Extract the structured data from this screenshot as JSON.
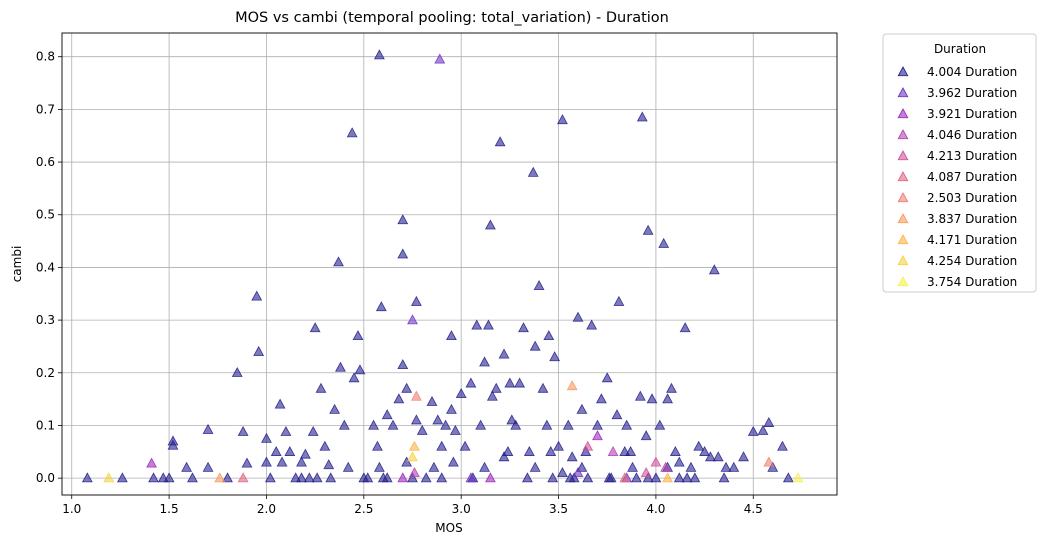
{
  "chart_data": {
    "type": "scatter",
    "title": "MOS vs cambi (temporal pooling: total_variation) - Duration",
    "xlabel": "MOS",
    "ylabel": "cambi",
    "xlim": [
      0.95,
      4.93
    ],
    "ylim": [
      -0.032,
      0.845
    ],
    "xticks": [
      "1.0",
      "1.5",
      "2.0",
      "2.5",
      "3.0",
      "3.5",
      "4.0",
      "4.5"
    ],
    "yticks": [
      "0.0",
      "0.1",
      "0.2",
      "0.3",
      "0.4",
      "0.5",
      "0.6",
      "0.7",
      "0.8"
    ],
    "grid": true,
    "marker": "triangle",
    "legend": {
      "title": "Duration",
      "placement": "outside-top-right",
      "entries": [
        "4.004 Duration",
        "3.962 Duration",
        "3.921 Duration",
        "4.046 Duration",
        "4.213 Duration",
        "4.087 Duration",
        "2.503 Duration",
        "3.837 Duration",
        "4.171 Duration",
        "4.254 Duration",
        "3.754 Duration"
      ]
    },
    "series": [
      {
        "name": "4.004 Duration",
        "color": "#1f1a8a",
        "points": [
          [
            1.08,
            0.0
          ],
          [
            1.26,
            0.0
          ],
          [
            1.42,
            0.0
          ],
          [
            1.47,
            0.0
          ],
          [
            1.5,
            0.0
          ],
          [
            1.52,
            0.07
          ],
          [
            1.52,
            0.062
          ],
          [
            1.59,
            0.02
          ],
          [
            1.62,
            0.0
          ],
          [
            1.7,
            0.092
          ],
          [
            1.7,
            0.02
          ],
          [
            1.8,
            0.0
          ],
          [
            1.85,
            0.2
          ],
          [
            1.88,
            0.088
          ],
          [
            1.9,
            0.028
          ],
          [
            1.95,
            0.345
          ],
          [
            1.96,
            0.24
          ],
          [
            2.0,
            0.075
          ],
          [
            2.0,
            0.03
          ],
          [
            2.02,
            0.0
          ],
          [
            2.05,
            0.05
          ],
          [
            2.07,
            0.14
          ],
          [
            2.1,
            0.088
          ],
          [
            2.12,
            0.05
          ],
          [
            2.15,
            0.0
          ],
          [
            2.18,
            0.03
          ],
          [
            2.2,
            0.045
          ],
          [
            2.22,
            0.0
          ],
          [
            2.24,
            0.088
          ],
          [
            2.25,
            0.285
          ],
          [
            2.28,
            0.17
          ],
          [
            2.3,
            0.06
          ],
          [
            2.32,
            0.025
          ],
          [
            2.35,
            0.13
          ],
          [
            2.37,
            0.41
          ],
          [
            2.38,
            0.21
          ],
          [
            2.4,
            0.1
          ],
          [
            2.42,
            0.02
          ],
          [
            2.44,
            0.655
          ],
          [
            2.45,
            0.19
          ],
          [
            2.47,
            0.27
          ],
          [
            2.48,
            0.205
          ],
          [
            2.5,
            0.0
          ],
          [
            2.52,
            0.0
          ],
          [
            2.55,
            0.1
          ],
          [
            2.57,
            0.06
          ],
          [
            2.58,
            0.803
          ],
          [
            2.59,
            0.325
          ],
          [
            2.6,
            0.0
          ],
          [
            2.62,
            0.12
          ],
          [
            2.65,
            0.1
          ],
          [
            2.68,
            0.15
          ],
          [
            2.7,
            0.49
          ],
          [
            2.7,
            0.425
          ],
          [
            2.7,
            0.215
          ],
          [
            2.72,
            0.17
          ],
          [
            2.75,
            0.0
          ],
          [
            2.77,
            0.335
          ],
          [
            2.77,
            0.11
          ],
          [
            2.8,
            0.09
          ],
          [
            2.82,
            0.0
          ],
          [
            2.85,
            0.145
          ],
          [
            2.88,
            0.11
          ],
          [
            2.9,
            0.06
          ],
          [
            2.92,
            0.1
          ],
          [
            2.95,
            0.27
          ],
          [
            2.95,
            0.13
          ],
          [
            2.97,
            0.09
          ],
          [
            3.0,
            0.16
          ],
          [
            3.02,
            0.06
          ],
          [
            3.05,
            0.18
          ],
          [
            3.08,
            0.29
          ],
          [
            3.1,
            0.1
          ],
          [
            3.12,
            0.22
          ],
          [
            3.14,
            0.29
          ],
          [
            3.15,
            0.48
          ],
          [
            3.16,
            0.155
          ],
          [
            3.18,
            0.17
          ],
          [
            3.2,
            0.638
          ],
          [
            3.22,
            0.235
          ],
          [
            3.24,
            0.05
          ],
          [
            3.25,
            0.18
          ],
          [
            3.26,
            0.11
          ],
          [
            3.28,
            0.1
          ],
          [
            3.3,
            0.18
          ],
          [
            3.32,
            0.285
          ],
          [
            3.35,
            0.05
          ],
          [
            3.37,
            0.58
          ],
          [
            3.38,
            0.25
          ],
          [
            3.4,
            0.365
          ],
          [
            3.42,
            0.17
          ],
          [
            3.44,
            0.1
          ],
          [
            3.45,
            0.27
          ],
          [
            3.47,
            0.0
          ],
          [
            3.48,
            0.23
          ],
          [
            3.5,
            0.06
          ],
          [
            3.52,
            0.68
          ],
          [
            3.55,
            0.1
          ],
          [
            3.57,
            0.04
          ],
          [
            3.58,
            0.0
          ],
          [
            3.6,
            0.305
          ],
          [
            3.62,
            0.13
          ],
          [
            3.64,
            0.05
          ],
          [
            3.65,
            0.0
          ],
          [
            3.67,
            0.29
          ],
          [
            3.7,
            0.1
          ],
          [
            3.72,
            0.15
          ],
          [
            3.75,
            0.19
          ],
          [
            3.77,
            0.0
          ],
          [
            3.8,
            0.12
          ],
          [
            3.81,
            0.335
          ],
          [
            3.85,
            0.1
          ],
          [
            3.87,
            0.05
          ],
          [
            3.9,
            0.0
          ],
          [
            3.92,
            0.155
          ],
          [
            3.93,
            0.685
          ],
          [
            3.95,
            0.08
          ],
          [
            3.96,
            0.47
          ],
          [
            3.98,
            0.15
          ],
          [
            4.0,
            0.0
          ],
          [
            4.02,
            0.1
          ],
          [
            4.04,
            0.445
          ],
          [
            4.06,
            0.15
          ],
          [
            4.08,
            0.17
          ],
          [
            4.1,
            0.05
          ],
          [
            4.12,
            0.03
          ],
          [
            4.15,
            0.285
          ],
          [
            4.18,
            0.02
          ],
          [
            4.2,
            0.0
          ],
          [
            4.22,
            0.06
          ],
          [
            4.25,
            0.05
          ],
          [
            4.28,
            0.04
          ],
          [
            4.3,
            0.395
          ],
          [
            4.32,
            0.04
          ],
          [
            4.35,
            0.0
          ],
          [
            4.4,
            0.02
          ],
          [
            4.45,
            0.04
          ],
          [
            4.5,
            0.088
          ],
          [
            4.55,
            0.09
          ],
          [
            4.58,
            0.105
          ],
          [
            4.6,
            0.02
          ],
          [
            4.65,
            0.06
          ],
          [
            4.68,
            0.0
          ],
          [
            2.08,
            0.03
          ],
          [
            2.33,
            0.0
          ],
          [
            2.62,
            0.0
          ],
          [
            2.9,
            0.0
          ],
          [
            3.06,
            0.0
          ],
          [
            3.34,
            0.0
          ],
          [
            3.56,
            0.0
          ],
          [
            3.76,
            0.0
          ],
          [
            3.96,
            0.0
          ],
          [
            4.16,
            0.0
          ],
          [
            2.26,
            0.0
          ],
          [
            2.58,
            0.02
          ],
          [
            2.86,
            0.02
          ],
          [
            3.12,
            0.02
          ],
          [
            3.38,
            0.02
          ],
          [
            3.62,
            0.02
          ],
          [
            3.88,
            0.02
          ],
          [
            4.12,
            0.0
          ],
          [
            4.36,
            0.02
          ],
          [
            2.18,
            0.0
          ],
          [
            2.72,
            0.03
          ],
          [
            3.22,
            0.04
          ],
          [
            3.52,
            0.01
          ],
          [
            3.84,
            0.05
          ],
          [
            4.06,
            0.02
          ],
          [
            2.96,
            0.03
          ],
          [
            3.46,
            0.05
          ]
        ]
      },
      {
        "name": "3.962 Duration",
        "color": "#6a2cc2",
        "points": [
          [
            2.89,
            0.795
          ],
          [
            2.75,
            0.3
          ],
          [
            3.05,
            0.0
          ],
          [
            3.6,
            0.01
          ],
          [
            3.85,
            0.0
          ]
        ]
      },
      {
        "name": "3.921 Duration",
        "color": "#9a22b8",
        "points": [
          [
            1.41,
            0.028
          ],
          [
            3.7,
            0.08
          ],
          [
            3.15,
            0.0
          ],
          [
            2.7,
            0.0
          ]
        ]
      },
      {
        "name": "4.046 Duration",
        "color": "#b43cb0",
        "points": [
          [
            3.78,
            0.05
          ],
          [
            2.76,
            0.01
          ],
          [
            4.05,
            0.02
          ]
        ]
      },
      {
        "name": "4.213 Duration",
        "color": "#cf4d9a",
        "points": [
          [
            3.95,
            0.01
          ],
          [
            3.65,
            0.06
          ],
          [
            4.0,
            0.03
          ]
        ]
      },
      {
        "name": "4.087 Duration",
        "color": "#e0607c",
        "points": [
          [
            1.88,
            0.0
          ],
          [
            3.84,
            0.0
          ]
        ]
      },
      {
        "name": "2.503 Duration",
        "color": "#ef7b6e",
        "points": [
          [
            2.77,
            0.155
          ],
          [
            4.58,
            0.03
          ]
        ]
      },
      {
        "name": "3.837 Duration",
        "color": "#f7975a",
        "points": [
          [
            3.57,
            0.175
          ],
          [
            1.76,
            0.0
          ]
        ]
      },
      {
        "name": "4.171 Duration",
        "color": "#fbb13e",
        "points": [
          [
            2.76,
            0.06
          ],
          [
            4.06,
            0.0
          ]
        ]
      },
      {
        "name": "4.254 Duration",
        "color": "#f3d23a",
        "points": [
          [
            1.19,
            0.0
          ],
          [
            2.75,
            0.04
          ]
        ]
      },
      {
        "name": "3.754 Duration",
        "color": "#f5f04a",
        "points": [
          [
            4.73,
            0.0
          ]
        ]
      }
    ]
  }
}
